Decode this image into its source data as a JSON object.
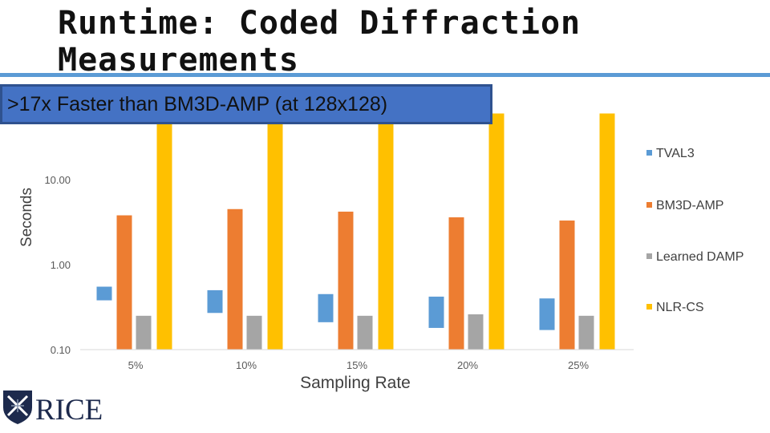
{
  "slide": {
    "title": "Runtime: Coded Diffraction Measurements",
    "callout": ">17x Faster than BM3D-AMP (at 128x128)",
    "logo_text": "RICE"
  },
  "colors": {
    "accent": "#5b9bd5",
    "callout_fill": "#4472c4",
    "TVAL3": "#5b9bd5",
    "BM3D-AMP": "#ed7d31",
    "Learned DAMP": "#a5a5a5",
    "NLR-CS": "#ffc000"
  },
  "chart_data": {
    "type": "bar",
    "y_scale": "log",
    "title": "",
    "xlabel": "Sampling Rate",
    "ylabel": "Seconds",
    "categories": [
      "5%",
      "10%",
      "15%",
      "20%",
      "25%"
    ],
    "y_ticks": [
      10,
      1,
      0.1
    ],
    "y_tick_labels": [
      "10.00",
      "1.00",
      "0.10"
    ],
    "ylim": [
      0.1,
      100
    ],
    "grid": false,
    "legend": "right",
    "series": [
      {
        "name": "TVAL3",
        "values": [
          0.55,
          0.5,
          0.45,
          0.42,
          0.4
        ],
        "base": [
          0.38,
          0.27,
          0.21,
          0.18,
          0.17
        ]
      },
      {
        "name": "BM3D-AMP",
        "values": [
          3.8,
          4.5,
          4.2,
          3.6,
          3.3
        ]
      },
      {
        "name": "Learned DAMP",
        "values": [
          0.25,
          0.25,
          0.25,
          0.26,
          0.25
        ]
      },
      {
        "name": "NLR-CS",
        "values": [
          60,
          60,
          60,
          60,
          60
        ]
      }
    ]
  }
}
